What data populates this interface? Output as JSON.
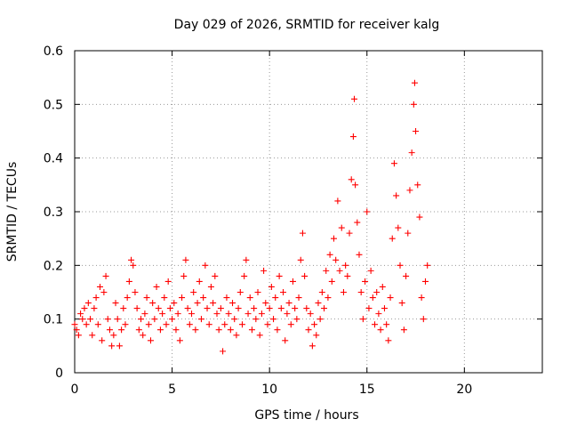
{
  "chart_data": {
    "type": "scatter",
    "title": "Day 029 of 2026, SRMTID for receiver kalg",
    "xlabel": "GPS time / hours",
    "ylabel": "SRMTID / TECUs",
    "xlim": [
      0,
      24
    ],
    "ylim": [
      0,
      0.6
    ],
    "x_ticks": [
      0,
      5,
      10,
      15,
      20
    ],
    "y_ticks": [
      0,
      0.1,
      0.2,
      0.3,
      0.4,
      0.5,
      0.6
    ],
    "x_tick_labels": [
      "0",
      "5",
      "10",
      "15",
      "20"
    ],
    "y_tick_labels": [
      "0",
      "0.1",
      "0.2",
      "0.3",
      "0.4",
      "0.5",
      "0.6"
    ],
    "grid": true,
    "marker": "+",
    "color": "#ff0000",
    "series": [
      {
        "name": "SRMTID",
        "points": [
          [
            0.0,
            0.09
          ],
          [
            0.1,
            0.08
          ],
          [
            0.2,
            0.07
          ],
          [
            0.3,
            0.11
          ],
          [
            0.4,
            0.1
          ],
          [
            0.5,
            0.12
          ],
          [
            0.6,
            0.09
          ],
          [
            0.7,
            0.13
          ],
          [
            0.8,
            0.1
          ],
          [
            0.9,
            0.07
          ],
          [
            1.0,
            0.12
          ],
          [
            1.1,
            0.14
          ],
          [
            1.2,
            0.09
          ],
          [
            1.3,
            0.16
          ],
          [
            1.4,
            0.06
          ],
          [
            1.5,
            0.15
          ],
          [
            1.6,
            0.18
          ],
          [
            1.7,
            0.1
          ],
          [
            1.8,
            0.08
          ],
          [
            1.9,
            0.05
          ],
          [
            2.0,
            0.07
          ],
          [
            2.1,
            0.13
          ],
          [
            2.2,
            0.1
          ],
          [
            2.3,
            0.05
          ],
          [
            2.4,
            0.08
          ],
          [
            2.5,
            0.12
          ],
          [
            2.6,
            0.09
          ],
          [
            2.7,
            0.14
          ],
          [
            2.8,
            0.17
          ],
          [
            2.9,
            0.21
          ],
          [
            3.0,
            0.2
          ],
          [
            3.1,
            0.15
          ],
          [
            3.2,
            0.12
          ],
          [
            3.3,
            0.08
          ],
          [
            3.4,
            0.1
          ],
          [
            3.5,
            0.07
          ],
          [
            3.6,
            0.11
          ],
          [
            3.7,
            0.14
          ],
          [
            3.8,
            0.09
          ],
          [
            3.9,
            0.06
          ],
          [
            4.0,
            0.13
          ],
          [
            4.1,
            0.1
          ],
          [
            4.2,
            0.16
          ],
          [
            4.3,
            0.12
          ],
          [
            4.4,
            0.08
          ],
          [
            4.5,
            0.11
          ],
          [
            4.6,
            0.14
          ],
          [
            4.7,
            0.09
          ],
          [
            4.8,
            0.17
          ],
          [
            4.9,
            0.12
          ],
          [
            5.0,
            0.1
          ],
          [
            5.1,
            0.13
          ],
          [
            5.2,
            0.08
          ],
          [
            5.3,
            0.11
          ],
          [
            5.4,
            0.06
          ],
          [
            5.5,
            0.14
          ],
          [
            5.6,
            0.18
          ],
          [
            5.7,
            0.21
          ],
          [
            5.8,
            0.12
          ],
          [
            5.9,
            0.09
          ],
          [
            6.0,
            0.11
          ],
          [
            6.1,
            0.15
          ],
          [
            6.2,
            0.08
          ],
          [
            6.3,
            0.13
          ],
          [
            6.4,
            0.17
          ],
          [
            6.5,
            0.1
          ],
          [
            6.6,
            0.14
          ],
          [
            6.7,
            0.2
          ],
          [
            6.8,
            0.12
          ],
          [
            6.9,
            0.09
          ],
          [
            7.0,
            0.16
          ],
          [
            7.1,
            0.13
          ],
          [
            7.2,
            0.18
          ],
          [
            7.3,
            0.11
          ],
          [
            7.4,
            0.08
          ],
          [
            7.5,
            0.12
          ],
          [
            7.6,
            0.04
          ],
          [
            7.7,
            0.09
          ],
          [
            7.8,
            0.14
          ],
          [
            7.9,
            0.11
          ],
          [
            8.0,
            0.08
          ],
          [
            8.1,
            0.13
          ],
          [
            8.2,
            0.1
          ],
          [
            8.3,
            0.07
          ],
          [
            8.4,
            0.12
          ],
          [
            8.5,
            0.15
          ],
          [
            8.6,
            0.09
          ],
          [
            8.7,
            0.18
          ],
          [
            8.8,
            0.21
          ],
          [
            8.9,
            0.11
          ],
          [
            9.0,
            0.14
          ],
          [
            9.1,
            0.08
          ],
          [
            9.2,
            0.12
          ],
          [
            9.3,
            0.1
          ],
          [
            9.4,
            0.15
          ],
          [
            9.5,
            0.07
          ],
          [
            9.6,
            0.11
          ],
          [
            9.7,
            0.19
          ],
          [
            9.8,
            0.13
          ],
          [
            9.9,
            0.09
          ],
          [
            10.0,
            0.12
          ],
          [
            10.1,
            0.16
          ],
          [
            10.2,
            0.1
          ],
          [
            10.3,
            0.14
          ],
          [
            10.4,
            0.08
          ],
          [
            10.5,
            0.18
          ],
          [
            10.6,
            0.12
          ],
          [
            10.7,
            0.15
          ],
          [
            10.8,
            0.06
          ],
          [
            10.9,
            0.11
          ],
          [
            11.0,
            0.13
          ],
          [
            11.1,
            0.09
          ],
          [
            11.2,
            0.17
          ],
          [
            11.3,
            0.12
          ],
          [
            11.4,
            0.1
          ],
          [
            11.5,
            0.14
          ],
          [
            11.6,
            0.21
          ],
          [
            11.7,
            0.26
          ],
          [
            11.8,
            0.18
          ],
          [
            11.9,
            0.12
          ],
          [
            12.0,
            0.08
          ],
          [
            12.1,
            0.11
          ],
          [
            12.2,
            0.05
          ],
          [
            12.3,
            0.09
          ],
          [
            12.4,
            0.07
          ],
          [
            12.5,
            0.13
          ],
          [
            12.6,
            0.1
          ],
          [
            12.7,
            0.15
          ],
          [
            12.8,
            0.12
          ],
          [
            12.9,
            0.19
          ],
          [
            13.0,
            0.14
          ],
          [
            13.1,
            0.22
          ],
          [
            13.2,
            0.17
          ],
          [
            13.3,
            0.25
          ],
          [
            13.4,
            0.21
          ],
          [
            13.5,
            0.32
          ],
          [
            13.6,
            0.19
          ],
          [
            13.7,
            0.27
          ],
          [
            13.8,
            0.15
          ],
          [
            13.9,
            0.2
          ],
          [
            14.0,
            0.18
          ],
          [
            14.1,
            0.26
          ],
          [
            14.2,
            0.36
          ],
          [
            14.3,
            0.44
          ],
          [
            14.35,
            0.51
          ],
          [
            14.4,
            0.35
          ],
          [
            14.5,
            0.28
          ],
          [
            14.6,
            0.22
          ],
          [
            14.7,
            0.15
          ],
          [
            14.8,
            0.1
          ],
          [
            14.9,
            0.17
          ],
          [
            15.0,
            0.3
          ],
          [
            15.1,
            0.12
          ],
          [
            15.2,
            0.19
          ],
          [
            15.3,
            0.14
          ],
          [
            15.4,
            0.09
          ],
          [
            15.5,
            0.15
          ],
          [
            15.6,
            0.11
          ],
          [
            15.7,
            0.08
          ],
          [
            15.8,
            0.16
          ],
          [
            15.9,
            0.12
          ],
          [
            16.0,
            0.09
          ],
          [
            16.1,
            0.06
          ],
          [
            16.2,
            0.14
          ],
          [
            16.3,
            0.25
          ],
          [
            16.4,
            0.39
          ],
          [
            16.5,
            0.33
          ],
          [
            16.6,
            0.27
          ],
          [
            16.7,
            0.2
          ],
          [
            16.8,
            0.13
          ],
          [
            16.9,
            0.08
          ],
          [
            17.0,
            0.18
          ],
          [
            17.1,
            0.26
          ],
          [
            17.2,
            0.34
          ],
          [
            17.3,
            0.41
          ],
          [
            17.4,
            0.5
          ],
          [
            17.45,
            0.54
          ],
          [
            17.5,
            0.45
          ],
          [
            17.6,
            0.35
          ],
          [
            17.7,
            0.29
          ],
          [
            17.8,
            0.14
          ],
          [
            17.9,
            0.1
          ],
          [
            18.0,
            0.17
          ],
          [
            18.1,
            0.2
          ]
        ]
      }
    ]
  }
}
